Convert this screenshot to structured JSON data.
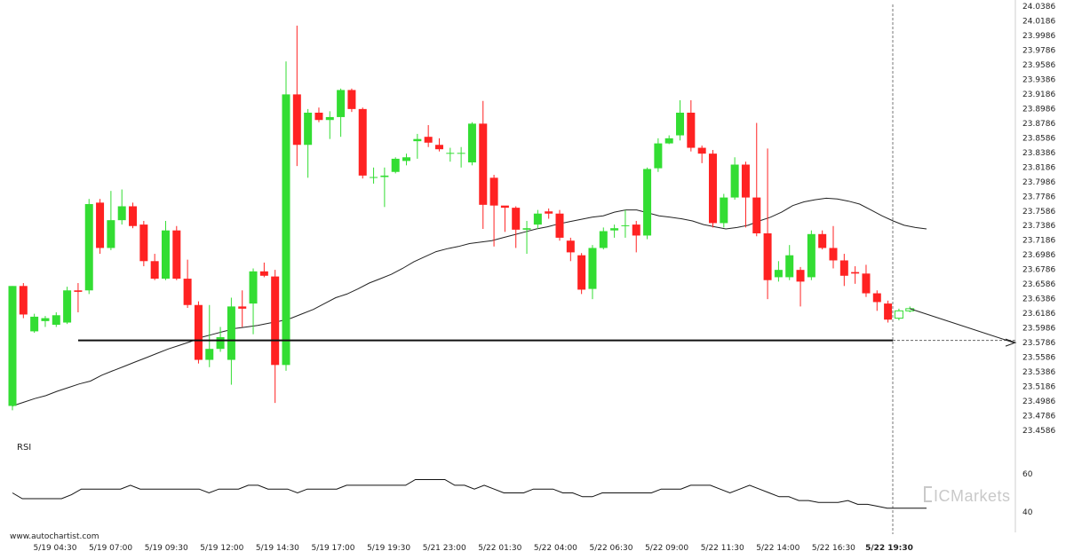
{
  "watermark": "www.autochartist.com",
  "brand": "ICMarkets",
  "colors": {
    "up": "#33dd33",
    "down": "#ff2222",
    "line": "#222222",
    "background": "#ffffff"
  },
  "chart_data": [
    {
      "type": "candlestick",
      "title": "",
      "xlabel": "",
      "ylabel": "",
      "ylim": [
        23.4586,
        24.0386
      ],
      "y_ticks": [
        "24.0386",
        "24.0186",
        "23.9986",
        "23.9786",
        "23.9586",
        "23.9386",
        "23.9186",
        "23.8986",
        "23.8786",
        "23.8586",
        "23.8386",
        "23.8186",
        "23.7986",
        "23.7786",
        "23.7586",
        "23.7386",
        "23.7186",
        "23.6986",
        "23.6786",
        "23.6586",
        "23.6386",
        "23.6186",
        "23.5986",
        "23.5786",
        "23.5586",
        "23.5386",
        "23.5186",
        "23.4986",
        "23.4786",
        "23.4586"
      ],
      "x_ticks": [
        "5/19 04:30",
        "5/19 07:00",
        "5/19 09:30",
        "5/19 12:00",
        "5/19 14:30",
        "5/19 17:00",
        "5/19 19:30",
        "5/21 23:00",
        "5/22 01:30",
        "5/22 04:00",
        "5/22 06:30",
        "5/22 09:00",
        "5/22 11:30",
        "5/22 14:00",
        "5/22 16:30",
        "5/22 19:30"
      ],
      "highlighted_x_tick": "5/22 19:30",
      "support_level": 23.5816,
      "forecast_end": 23.5786,
      "candles": [
        [
          23.492,
          23.656,
          23.486,
          23.656
        ],
        [
          23.656,
          23.617,
          23.612,
          23.66
        ],
        [
          23.594,
          23.614,
          23.592,
          23.618
        ],
        [
          23.608,
          23.612,
          23.6,
          23.615
        ],
        [
          23.603,
          23.616,
          23.6,
          23.62
        ],
        [
          23.606,
          23.65,
          23.604,
          23.655
        ],
        [
          23.65,
          23.648,
          23.62,
          23.66
        ],
        [
          23.65,
          23.768,
          23.645,
          23.775
        ],
        [
          23.77,
          23.708,
          23.7,
          23.775
        ],
        [
          23.708,
          23.746,
          23.705,
          23.786
        ],
        [
          23.746,
          23.765,
          23.74,
          23.788
        ],
        [
          23.765,
          23.738,
          23.735,
          23.77
        ],
        [
          23.74,
          23.69,
          23.683,
          23.745
        ],
        [
          23.69,
          23.666,
          23.664,
          23.7
        ],
        [
          23.666,
          23.732,
          23.664,
          23.745
        ],
        [
          23.732,
          23.666,
          23.664,
          23.738
        ],
        [
          23.666,
          23.63,
          23.626,
          23.692
        ],
        [
          23.63,
          23.555,
          23.55,
          23.635
        ],
        [
          23.555,
          23.57,
          23.545,
          23.63
        ],
        [
          23.57,
          23.586,
          23.566,
          23.6
        ],
        [
          23.555,
          23.628,
          23.521,
          23.64
        ],
        [
          23.628,
          23.625,
          23.6,
          23.65
        ],
        [
          23.632,
          23.676,
          23.59,
          23.68
        ],
        [
          23.676,
          23.67,
          23.668,
          23.688
        ],
        [
          23.669,
          23.548,
          23.496,
          23.678
        ],
        [
          23.548,
          23.918,
          23.54,
          23.963
        ],
        [
          23.918,
          23.849,
          23.82,
          24.012
        ],
        [
          23.849,
          23.893,
          23.804,
          23.898
        ],
        [
          23.893,
          23.883,
          23.88,
          23.9
        ],
        [
          23.883,
          23.887,
          23.857,
          23.895
        ],
        [
          23.887,
          23.924,
          23.86,
          23.926
        ],
        [
          23.924,
          23.898,
          23.894,
          23.926
        ],
        [
          23.898,
          23.807,
          23.803,
          23.9
        ],
        [
          23.804,
          23.805,
          23.796,
          23.818
        ],
        [
          23.805,
          23.807,
          23.764,
          23.818
        ],
        [
          23.812,
          23.83,
          23.81,
          23.832
        ],
        [
          23.827,
          23.832,
          23.821,
          23.837
        ],
        [
          23.854,
          23.857,
          23.83,
          23.864
        ],
        [
          23.86,
          23.852,
          23.846,
          23.876
        ],
        [
          23.849,
          23.843,
          23.84,
          23.858
        ],
        [
          23.837,
          23.838,
          23.826,
          23.845
        ],
        [
          23.838,
          23.838,
          23.818,
          23.846
        ],
        [
          23.825,
          23.878,
          23.821,
          23.88
        ],
        [
          23.878,
          23.767,
          23.734,
          23.909
        ],
        [
          23.804,
          23.766,
          23.71,
          23.808
        ],
        [
          23.766,
          23.763,
          23.73,
          23.765
        ],
        [
          23.763,
          23.733,
          23.708,
          23.765
        ],
        [
          23.733,
          23.735,
          23.7,
          23.745
        ],
        [
          23.74,
          23.755,
          23.734,
          23.76
        ],
        [
          23.758,
          23.755,
          23.748,
          23.762
        ],
        [
          23.755,
          23.722,
          23.718,
          23.76
        ],
        [
          23.718,
          23.702,
          23.69,
          23.722
        ],
        [
          23.698,
          23.651,
          23.645,
          23.701
        ],
        [
          23.652,
          23.708,
          23.638,
          23.712
        ],
        [
          23.708,
          23.731,
          23.706,
          23.736
        ],
        [
          23.732,
          23.735,
          23.722,
          23.74
        ],
        [
          23.738,
          23.739,
          23.722,
          23.76
        ],
        [
          23.74,
          23.725,
          23.702,
          23.745
        ],
        [
          23.725,
          23.816,
          23.72,
          23.818
        ],
        [
          23.817,
          23.851,
          23.812,
          23.858
        ],
        [
          23.851,
          23.858,
          23.85,
          23.862
        ],
        [
          23.862,
          23.893,
          23.855,
          23.91
        ],
        [
          23.893,
          23.845,
          23.84,
          23.91
        ],
        [
          23.845,
          23.837,
          23.824,
          23.848
        ],
        [
          23.837,
          23.742,
          23.736,
          23.842
        ],
        [
          23.742,
          23.777,
          23.736,
          23.782
        ],
        [
          23.777,
          23.822,
          23.774,
          23.832
        ],
        [
          23.822,
          23.777,
          23.736,
          23.826
        ],
        [
          23.777,
          23.728,
          23.724,
          23.879
        ],
        [
          23.728,
          23.664,
          23.638,
          23.844
        ],
        [
          23.668,
          23.678,
          23.662,
          23.69
        ],
        [
          23.668,
          23.698,
          23.664,
          23.712
        ],
        [
          23.678,
          23.662,
          23.628,
          23.682
        ],
        [
          23.668,
          23.727,
          23.664,
          23.732
        ],
        [
          23.727,
          23.708,
          23.706,
          23.732
        ],
        [
          23.708,
          23.691,
          23.68,
          23.738
        ],
        [
          23.691,
          23.67,
          23.656,
          23.7
        ],
        [
          23.675,
          23.673,
          23.659,
          23.683
        ],
        [
          23.673,
          23.646,
          23.641,
          23.685
        ],
        [
          23.646,
          23.634,
          23.622,
          23.65
        ],
        [
          23.632,
          23.61,
          23.606,
          23.636
        ],
        [
          23.612,
          23.622,
          23.609,
          23.625
        ],
        [
          23.622,
          23.625,
          23.62,
          23.628
        ]
      ],
      "moving_average": [
        23.492,
        23.497,
        23.502,
        23.506,
        23.512,
        23.517,
        23.522,
        23.526,
        23.534,
        23.54,
        23.546,
        23.552,
        23.558,
        23.564,
        23.57,
        23.575,
        23.58,
        23.586,
        23.59,
        23.594,
        23.598,
        23.6,
        23.602,
        23.605,
        23.608,
        23.612,
        23.618,
        23.624,
        23.632,
        23.64,
        23.645,
        23.652,
        23.66,
        23.666,
        23.672,
        23.68,
        23.689,
        23.696,
        23.703,
        23.707,
        23.71,
        23.714,
        23.716,
        23.718,
        23.722,
        23.726,
        23.73,
        23.734,
        23.737,
        23.741,
        23.744,
        23.747,
        23.75,
        23.752,
        23.757,
        23.76,
        23.76,
        23.756,
        23.752,
        23.75,
        23.748,
        23.745,
        23.74,
        23.737,
        23.734,
        23.736,
        23.739,
        23.745,
        23.75,
        23.757,
        23.766,
        23.771,
        23.774,
        23.776,
        23.775,
        23.772,
        23.768,
        23.76,
        23.752,
        23.745,
        23.739,
        23.736,
        23.734
      ],
      "rsi": {
        "label": "RSI",
        "ylim": [
          35,
          70
        ],
        "y_ticks": [
          "60",
          "40"
        ],
        "values": [
          50,
          47,
          47,
          47,
          47,
          47,
          49,
          52,
          52,
          52,
          52,
          52,
          54,
          52,
          52,
          52,
          52,
          52,
          52,
          52,
          50,
          52,
          52,
          52,
          54,
          54,
          52,
          52,
          52,
          50,
          52,
          52,
          52,
          52,
          54,
          54,
          54,
          54,
          54,
          54,
          54,
          57,
          57,
          57,
          57,
          54,
          54,
          52,
          54,
          52,
          50,
          50,
          50,
          52,
          52,
          52,
          50,
          50,
          48,
          48,
          50,
          50,
          50,
          50,
          50,
          50,
          52,
          52,
          52,
          54,
          54,
          54,
          52,
          50,
          52,
          54,
          52,
          50,
          48,
          48,
          46,
          46,
          45,
          45,
          45,
          46,
          44,
          44,
          43,
          42,
          42,
          42,
          42,
          42
        ]
      }
    }
  ]
}
